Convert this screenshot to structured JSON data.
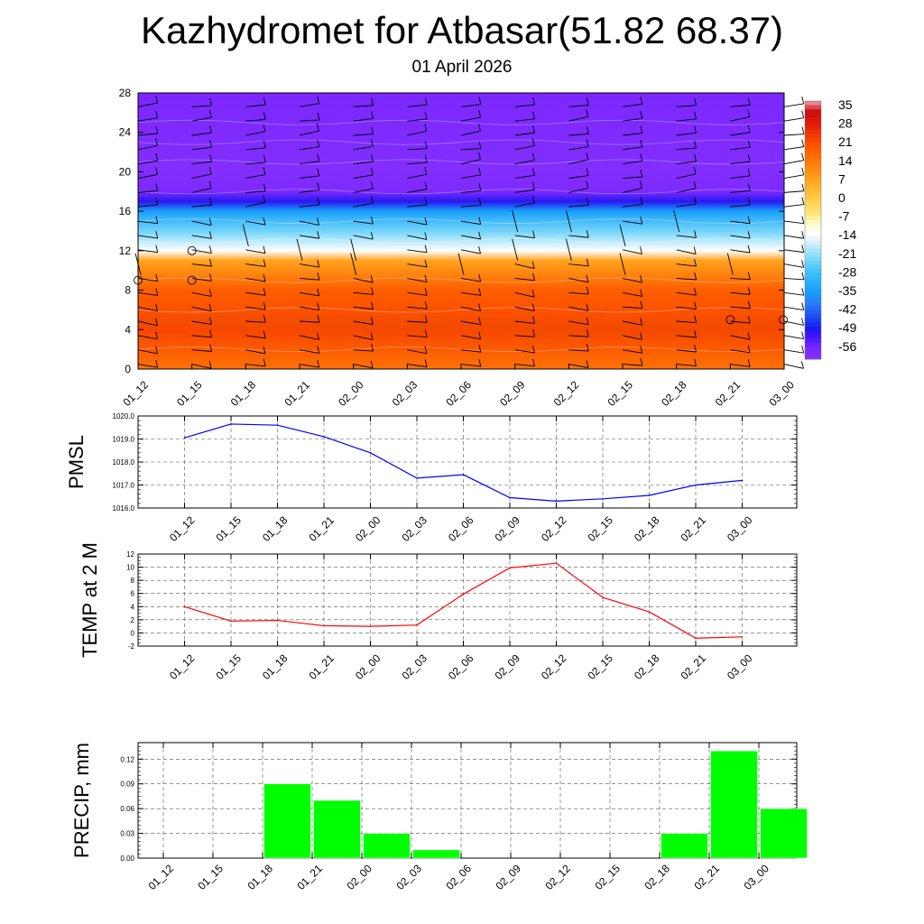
{
  "title": "Kazhydromet for Atbasar(51.82 68.37)",
  "subtitle": "01 April 2026",
  "time_labels": [
    "01_12",
    "01_15",
    "01_18",
    "01_21",
    "02_00",
    "02_03",
    "02_06",
    "02_09",
    "02_12",
    "02_15",
    "02_18",
    "02_21",
    "03_00"
  ],
  "chart_data": [
    {
      "type": "heatmap",
      "name": "temperature cross-section",
      "x": [
        "01_12",
        "01_15",
        "01_18",
        "01_21",
        "02_00",
        "02_03",
        "02_06",
        "02_09",
        "02_12",
        "02_15",
        "02_18",
        "02_21",
        "03_00"
      ],
      "y_ticks": [
        0,
        4,
        8,
        12,
        16,
        20,
        24,
        28
      ],
      "ylim": [
        0,
        28
      ],
      "colorbar_labels": [
        "35",
        "28",
        "21",
        "14",
        "7",
        "0",
        "-7",
        "-14",
        "-21",
        "-28",
        "-35",
        "-42",
        "-49",
        "-56"
      ],
      "profile": [
        {
          "level": 0,
          "temp": 14
        },
        {
          "level": 4,
          "temp": 21
        },
        {
          "level": 8,
          "temp": 17
        },
        {
          "level": 11,
          "temp": 6
        },
        {
          "level": 12,
          "temp": -14
        },
        {
          "level": 14,
          "temp": -24
        },
        {
          "level": 16,
          "temp": -35
        },
        {
          "level": 17,
          "temp": -50
        },
        {
          "level": 18,
          "temp": -57
        },
        {
          "level": 20,
          "temp": -59
        },
        {
          "level": 28,
          "temp": -56
        }
      ],
      "note": "wind barbs overlaid at each time and level"
    },
    {
      "type": "line",
      "ylabel": "PMSL",
      "ylim": [
        1016.0,
        1020.0
      ],
      "y_ticks": [
        "1016.0",
        "1017.0",
        "1018.0",
        "1019.0",
        "1020.0"
      ],
      "x": [
        "01_12",
        "01_15",
        "01_18",
        "01_21",
        "02_00",
        "02_03",
        "02_06",
        "02_09",
        "02_12",
        "02_15",
        "02_18",
        "02_21",
        "03_00"
      ],
      "values": [
        1019.05,
        1019.65,
        1019.6,
        1019.1,
        1018.4,
        1017.3,
        1017.45,
        1016.45,
        1016.3,
        1016.4,
        1016.55,
        1017.0,
        1017.2
      ],
      "color": "#0000ff"
    },
    {
      "type": "line",
      "ylabel": "TEMP at 2 M",
      "ylim": [
        -2,
        12
      ],
      "y_ticks": [
        "-2",
        "0",
        "2",
        "4",
        "6",
        "8",
        "10",
        "12"
      ],
      "x": [
        "01_12",
        "01_15",
        "01_18",
        "01_21",
        "02_00",
        "02_03",
        "02_06",
        "02_09",
        "02_12",
        "02_15",
        "02_18",
        "02_21",
        "03_00"
      ],
      "values": [
        4.0,
        1.8,
        1.9,
        1.1,
        1.0,
        1.2,
        5.9,
        9.9,
        10.6,
        5.4,
        3.2,
        -0.8,
        -0.6
      ],
      "color": "#ff0000"
    },
    {
      "type": "bar",
      "ylabel": "PRECIP, mm",
      "ylim": [
        0,
        0.14
      ],
      "y_ticks": [
        "0.00",
        "0.03",
        "0.06",
        "0.09",
        "0.12"
      ],
      "categories": [
        "01_12",
        "01_15",
        "01_18",
        "01_21",
        "02_00",
        "02_03",
        "02_06",
        "02_09",
        "02_12",
        "02_15",
        "02_18",
        "02_21",
        "03_00"
      ],
      "values": [
        0,
        0,
        0.09,
        0.07,
        0.03,
        0.01,
        0,
        0,
        0,
        0,
        0.03,
        0.13,
        0.06
      ],
      "color": "#00ff00"
    }
  ]
}
